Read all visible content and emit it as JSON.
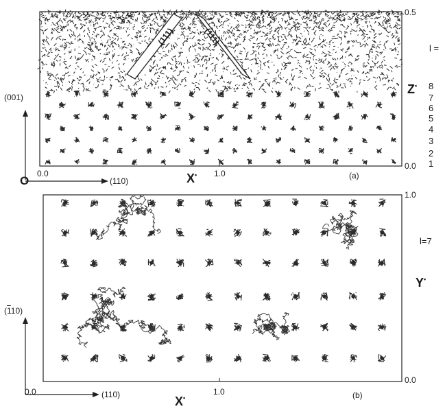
{
  "panel_a": {
    "caption": "(a)",
    "x_axis_label": "X",
    "y_axis_label": "Z",
    "x_ticks": [
      "0.0",
      "1.0"
    ],
    "y_ticks": [
      "0.0",
      "0.5"
    ],
    "direction_vertical": "(001)",
    "direction_horizontal": "(110)",
    "origin_label": "O",
    "layer_header": "l =",
    "layer_numbers": [
      "8",
      "7",
      "6",
      "5",
      "4",
      "3",
      "2",
      "1"
    ],
    "band_labels": [
      "(111)",
      "(111)"
    ]
  },
  "panel_b": {
    "caption": "(b)",
    "x_axis_label": "X",
    "y_axis_label": "Y",
    "x_ticks": [
      "0.0",
      "1.0"
    ],
    "y_ticks": [
      "0.0",
      "1.0"
    ],
    "direction_vertical_digit": "1",
    "direction_vertical_rest": "10)",
    "direction_horizontal": "(110)",
    "layer_label": "l=7"
  }
}
